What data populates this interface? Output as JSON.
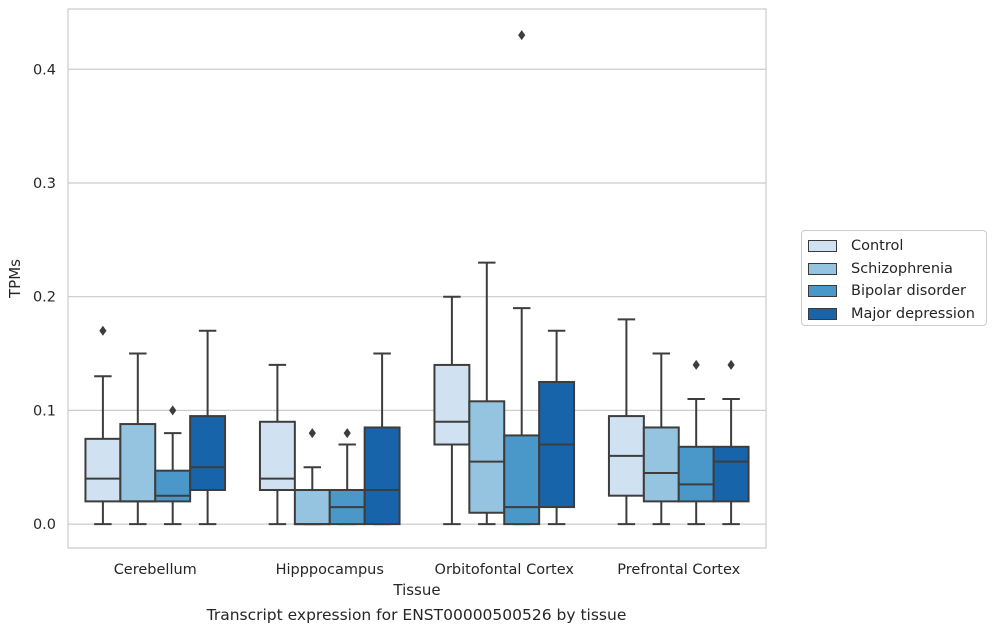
{
  "chart_data": {
    "type": "box",
    "title": "",
    "caption": "Transcript expression for ENST00000500526 by tissue",
    "xlabel": "Tissue",
    "ylabel": "TPMs",
    "categories": [
      "Cerebellum",
      "Hipppocampus",
      "Orbitofontal Cortex",
      "Prefrontal Cortex"
    ],
    "ylim": [
      -0.021,
      0.453
    ],
    "yticks": [
      0.0,
      0.1,
      0.2,
      0.3,
      0.4
    ],
    "ytick_labels": [
      "0.0",
      "0.1",
      "0.2",
      "0.3",
      "0.4"
    ],
    "grid": "horizontal",
    "legend_position": "right",
    "series": [
      {
        "name": "Control",
        "color": "#d0e1f2",
        "boxes": [
          {
            "min": 0.0,
            "q1": 0.02,
            "median": 0.04,
            "q3": 0.075,
            "max": 0.13,
            "outliers": [
              0.17
            ]
          },
          {
            "min": 0.0,
            "q1": 0.03,
            "median": 0.04,
            "q3": 0.09,
            "max": 0.14,
            "outliers": []
          },
          {
            "min": 0.0,
            "q1": 0.07,
            "median": 0.09,
            "q3": 0.14,
            "max": 0.2,
            "outliers": []
          },
          {
            "min": 0.0,
            "q1": 0.025,
            "median": 0.06,
            "q3": 0.095,
            "max": 0.18,
            "outliers": []
          }
        ]
      },
      {
        "name": "Schizophrenia",
        "color": "#94c4df",
        "boxes": [
          {
            "min": 0.0,
            "q1": 0.02,
            "median": 0.02,
            "q3": 0.088,
            "max": 0.15,
            "outliers": []
          },
          {
            "min": 0.0,
            "q1": 0.0,
            "median": 0.0,
            "q3": 0.03,
            "max": 0.05,
            "outliers": [
              0.08
            ]
          },
          {
            "min": 0.0,
            "q1": 0.01,
            "median": 0.055,
            "q3": 0.108,
            "max": 0.23,
            "outliers": []
          },
          {
            "min": 0.0,
            "q1": 0.02,
            "median": 0.045,
            "q3": 0.085,
            "max": 0.15,
            "outliers": []
          }
        ]
      },
      {
        "name": "Bipolar disorder",
        "color": "#4a98c9",
        "boxes": [
          {
            "min": 0.0,
            "q1": 0.02,
            "median": 0.025,
            "q3": 0.047,
            "max": 0.08,
            "outliers": [
              0.1
            ]
          },
          {
            "min": 0.0,
            "q1": 0.0,
            "median": 0.015,
            "q3": 0.03,
            "max": 0.07,
            "outliers": [
              0.08
            ]
          },
          {
            "min": 0.0,
            "q1": 0.0,
            "median": 0.015,
            "q3": 0.078,
            "max": 0.19,
            "outliers": [
              0.43
            ]
          },
          {
            "min": 0.0,
            "q1": 0.02,
            "median": 0.035,
            "q3": 0.068,
            "max": 0.11,
            "outliers": [
              0.14
            ]
          }
        ]
      },
      {
        "name": "Major depression",
        "color": "#1764ab",
        "boxes": [
          {
            "min": 0.0,
            "q1": 0.03,
            "median": 0.05,
            "q3": 0.095,
            "max": 0.17,
            "outliers": []
          },
          {
            "min": 0.0,
            "q1": 0.0,
            "median": 0.03,
            "q3": 0.085,
            "max": 0.15,
            "outliers": []
          },
          {
            "min": 0.0,
            "q1": 0.015,
            "median": 0.07,
            "q3": 0.125,
            "max": 0.17,
            "outliers": []
          },
          {
            "min": 0.0,
            "q1": 0.02,
            "median": 0.055,
            "q3": 0.068,
            "max": 0.11,
            "outliers": [
              0.14
            ]
          }
        ]
      }
    ]
  }
}
